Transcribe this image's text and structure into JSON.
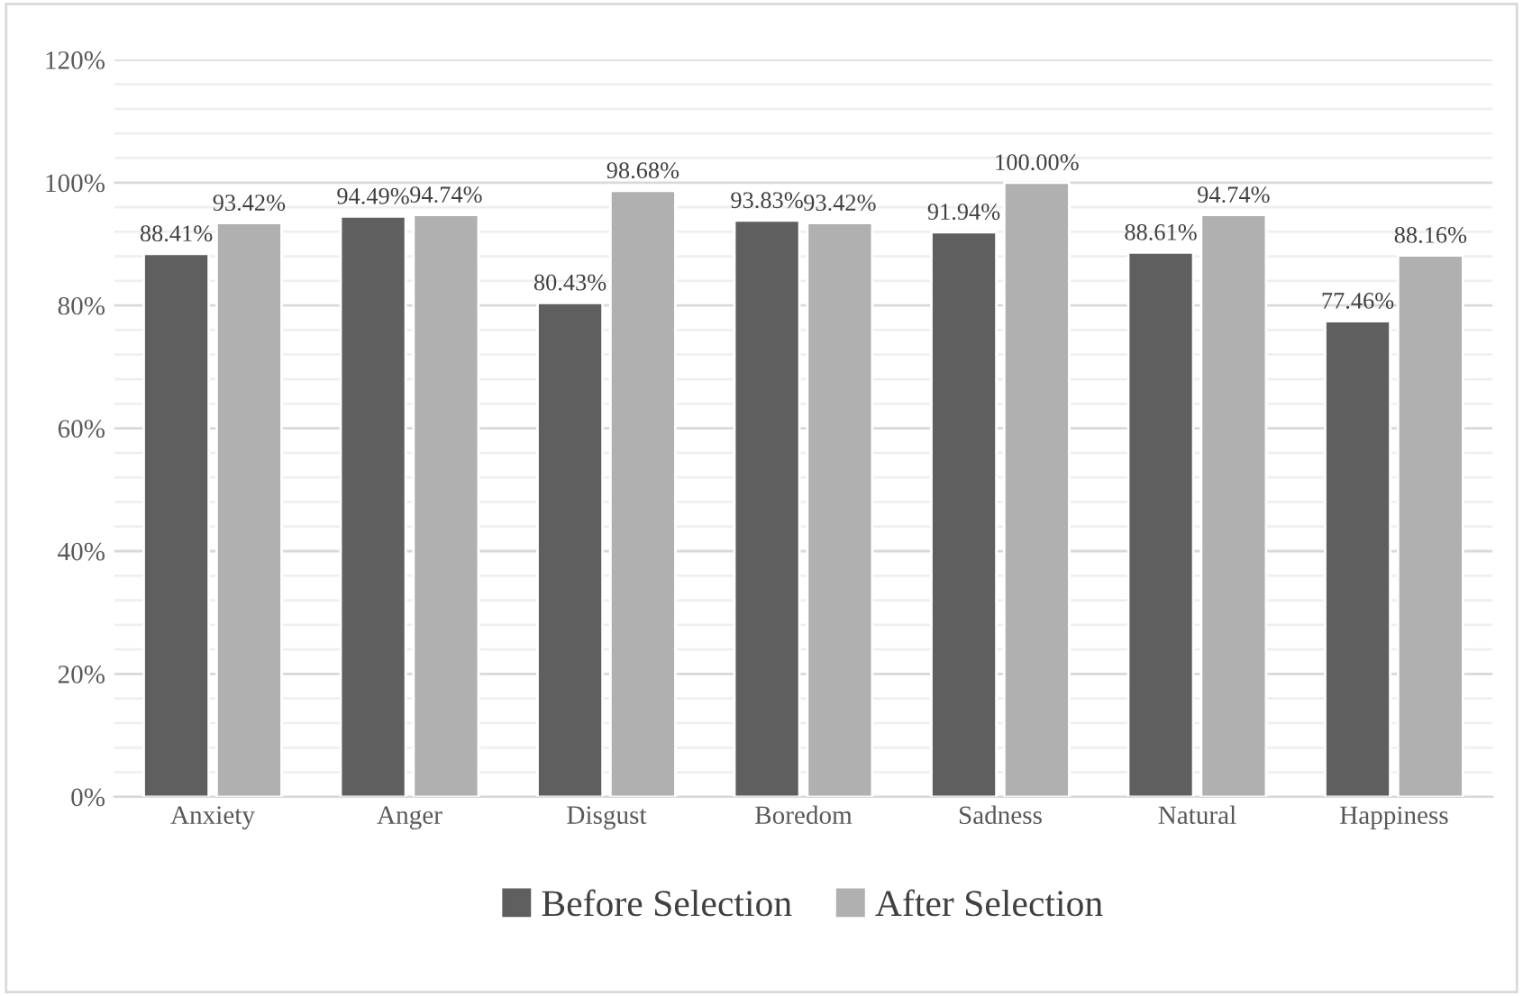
{
  "chart_data": {
    "type": "bar",
    "categories": [
      "Anxiety",
      "Anger",
      "Disgust",
      "Boredom",
      "Sadness",
      "Natural",
      "Happiness"
    ],
    "series": [
      {
        "name": "Before Selection",
        "color": "#5f5f5f",
        "values": [
          88.41,
          94.49,
          80.43,
          93.83,
          91.94,
          88.61,
          77.46
        ],
        "value_labels": [
          "88.41%",
          "94.49%",
          "80.43%",
          "93.83%",
          "91.94%",
          "88.61%",
          "77.46%"
        ]
      },
      {
        "name": "After Selection",
        "color": "#b0b0b0",
        "values": [
          93.42,
          94.74,
          98.68,
          93.42,
          100.0,
          94.74,
          88.16
        ],
        "value_labels": [
          "93.42%",
          "94.74%",
          "98.68%",
          "93.42%",
          "100.00%",
          "94.74%",
          "88.16%"
        ]
      }
    ],
    "ylim": [
      0,
      120
    ],
    "yticks": [
      {
        "value": 0,
        "label": "0%"
      },
      {
        "value": 4,
        "label": null
      },
      {
        "value": 8,
        "label": null
      },
      {
        "value": 12,
        "label": null
      },
      {
        "value": 16,
        "label": null
      },
      {
        "value": 20,
        "label": "20%"
      },
      {
        "value": 24,
        "label": null
      },
      {
        "value": 28,
        "label": null
      },
      {
        "value": 32,
        "label": null
      },
      {
        "value": 36,
        "label": null
      },
      {
        "value": 40,
        "label": "40%"
      },
      {
        "value": 44,
        "label": null
      },
      {
        "value": 48,
        "label": null
      },
      {
        "value": 52,
        "label": null
      },
      {
        "value": 56,
        "label": null
      },
      {
        "value": 60,
        "label": "60%"
      },
      {
        "value": 64,
        "label": null
      },
      {
        "value": 68,
        "label": null
      },
      {
        "value": 72,
        "label": null
      },
      {
        "value": 76,
        "label": null
      },
      {
        "value": 80,
        "label": "80%"
      },
      {
        "value": 84,
        "label": null
      },
      {
        "value": 88,
        "label": null
      },
      {
        "value": 92,
        "label": null
      },
      {
        "value": 96,
        "label": null
      },
      {
        "value": 100,
        "label": "100%"
      },
      {
        "value": 104,
        "label": null
      },
      {
        "value": 108,
        "label": null
      },
      {
        "value": 112,
        "label": null
      },
      {
        "value": 116,
        "label": null
      },
      {
        "value": 120,
        "label": "120%"
      }
    ],
    "grid": "y",
    "legend": "bottom"
  }
}
